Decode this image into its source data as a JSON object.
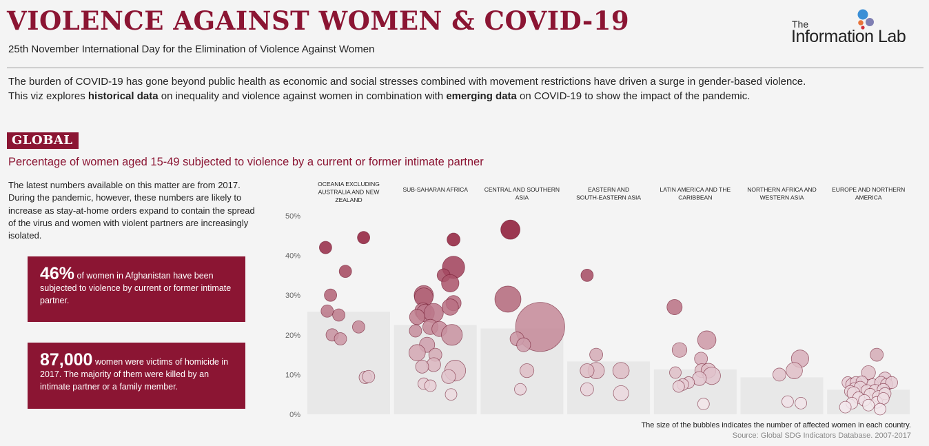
{
  "header": {
    "title": "VIOLENCE AGAINST WOMEN & COVID-19",
    "subtitle": "25th November International Day for the Elimination of Violence Against Women",
    "logo_the": "The",
    "logo_name": "Information Lab"
  },
  "intro": {
    "line1": "The burden of COVID-19 has gone beyond public health as economic and social stresses combined with movement restrictions have driven a surge in gender-based violence.",
    "line2_a": "This viz explores ",
    "line2_b": "historical data",
    "line2_c": " on inequality and violence against women in combination with ",
    "line2_d": "emerging data",
    "line2_e": " on COVID-19 to show the impact of the pandemic."
  },
  "section": {
    "badge": "GLOBAL",
    "title": "Percentage of women aged 15-49 subjected to violence by a current or former intimate partner",
    "description": "The latest numbers available on this matter are from 2017. During the pandemic, however, these numbers are likely to increase as stay-at-home orders expand to contain the spread of the virus and women with violent partners are increasingly isolated."
  },
  "cards": [
    {
      "big": "46%",
      "text": " of women in Afghanistan have been subjected to violence by current or former intimate partner."
    },
    {
      "big": "87,000",
      "text": "  women  were victims of homicide in 2017. The majority of them were killed by an intimate partner or a family member."
    }
  ],
  "footer": {
    "note": "The size of the bubbles indicates the number of affected women in each country.",
    "source": "Source: Global SDG Indicators Database. 2007-2017"
  },
  "colors": {
    "accent": "#8b1533",
    "bar": "#e8e8e8"
  },
  "chart_data": {
    "type": "bar",
    "ylim": [
      0,
      50
    ],
    "yticks": [
      "0%",
      "10%",
      "20%",
      "30%",
      "40%",
      "50%"
    ],
    "regions": [
      {
        "name": [
          "OCEANIA EXCLUDING",
          "AUSTRALIA AND NEW",
          "ZEALAND"
        ],
        "bar": 25.8,
        "bubbles": [
          [
            0.22,
            42,
            1
          ],
          [
            0.68,
            44.5,
            1
          ],
          [
            0.46,
            36,
            1
          ],
          [
            0.28,
            30,
            1
          ],
          [
            0.24,
            26,
            1
          ],
          [
            0.38,
            25,
            1
          ],
          [
            0.62,
            22,
            1
          ],
          [
            0.3,
            20,
            1
          ],
          [
            0.4,
            19,
            1
          ],
          [
            0.7,
            9.3,
            1
          ],
          [
            0.74,
            9.5,
            1
          ]
        ]
      },
      {
        "name": [
          "SUB-SAHARAN AFRICA"
        ],
        "bar": 22.5,
        "bubbles": [
          [
            0.72,
            44,
            1.2
          ],
          [
            0.72,
            37,
            6
          ],
          [
            0.6,
            35,
            1.2
          ],
          [
            0.68,
            33,
            3
          ],
          [
            0.36,
            30,
            4
          ],
          [
            0.36,
            29.5,
            3.6
          ],
          [
            0.35,
            26,
            2.5
          ],
          [
            0.38,
            25.5,
            3.2
          ],
          [
            0.48,
            25.5,
            4
          ],
          [
            0.28,
            24.5,
            2
          ],
          [
            0.72,
            28,
            2
          ],
          [
            0.68,
            27,
            2.5
          ],
          [
            0.44,
            22,
            2
          ],
          [
            0.55,
            21.5,
            2
          ],
          [
            0.26,
            21,
            1
          ],
          [
            0.7,
            20,
            5
          ],
          [
            0.4,
            17.5,
            2
          ],
          [
            0.28,
            15.5,
            2.5
          ],
          [
            0.5,
            15,
            1.2
          ],
          [
            0.48,
            12.5,
            1.5
          ],
          [
            0.34,
            12,
            1.2
          ],
          [
            0.74,
            11,
            5
          ],
          [
            0.66,
            9.5,
            1.5
          ],
          [
            0.36,
            7.7,
            0.8
          ],
          [
            0.44,
            7.2,
            0.8
          ],
          [
            0.69,
            5,
            0.8
          ]
        ]
      },
      {
        "name": [
          "CENTRAL AND SOUTHERN",
          "ASIA"
        ],
        "bar": 21.6,
        "bubbles": [
          [
            0.36,
            46.5,
            4
          ],
          [
            0.33,
            29,
            9
          ],
          [
            0.72,
            22,
            40
          ],
          [
            0.44,
            19,
            1.5
          ],
          [
            0.52,
            17.5,
            1.5
          ],
          [
            0.56,
            11,
            1.5
          ],
          [
            0.48,
            6.3,
            0.8
          ]
        ]
      },
      {
        "name": [
          "EASTERN AND",
          "SOUTH-EASTERN ASIA"
        ],
        "bar": 13.3,
        "bubbles": [
          [
            0.24,
            35,
            1
          ],
          [
            0.35,
            15,
            1.2
          ],
          [
            0.35,
            11,
            2.5
          ],
          [
            0.65,
            11,
            2.5
          ],
          [
            0.24,
            11,
            1.5
          ],
          [
            0.24,
            6.3,
            1.2
          ],
          [
            0.65,
            5.3,
            2
          ]
        ]
      },
      {
        "name": [
          "LATIN AMERICA AND THE",
          "CARIBBEAN"
        ],
        "bar": 11.3,
        "bubbles": [
          [
            0.25,
            27,
            2
          ],
          [
            0.31,
            16.2,
            1.8
          ],
          [
            0.64,
            18.7,
            3.5
          ],
          [
            0.57,
            14,
            1.2
          ],
          [
            0.26,
            10.5,
            0.8
          ],
          [
            0.58,
            11,
            1.5
          ],
          [
            0.66,
            11,
            1.8
          ],
          [
            0.7,
            9.7,
            3
          ],
          [
            0.55,
            9,
            1.5
          ],
          [
            0.42,
            8,
            0.8
          ],
          [
            0.35,
            7.5,
            0.8
          ],
          [
            0.3,
            7,
            0.8
          ],
          [
            0.6,
            2.6,
            0.8
          ]
        ]
      },
      {
        "name": [
          "NORTHERN AFRICA AND",
          "WESTERN ASIA"
        ],
        "bar": 9.3,
        "bubbles": [
          [
            0.72,
            14,
            3
          ],
          [
            0.65,
            11,
            2.5
          ],
          [
            0.47,
            10,
            1.2
          ],
          [
            0.57,
            3.2,
            0.8
          ],
          [
            0.73,
            2.8,
            0.8
          ]
        ]
      },
      {
        "name": [
          "EUROPE AND NORTHERN",
          "AMERICA"
        ],
        "bar": 6.2,
        "bubbles": [
          [
            0.6,
            15,
            1.2
          ],
          [
            0.5,
            10.5,
            1.5
          ],
          [
            0.7,
            9,
            1.2
          ],
          [
            0.25,
            8,
            0.8
          ],
          [
            0.3,
            7.5,
            1
          ],
          [
            0.35,
            8,
            0.9
          ],
          [
            0.42,
            8.2,
            0.8
          ],
          [
            0.55,
            7.5,
            0.8
          ],
          [
            0.65,
            8,
            1
          ],
          [
            0.72,
            7.5,
            1
          ],
          [
            0.78,
            8,
            0.9
          ],
          [
            0.33,
            6.5,
            0.8
          ],
          [
            0.4,
            6.8,
            0.9
          ],
          [
            0.48,
            6,
            0.8
          ],
          [
            0.58,
            6,
            0.9
          ],
          [
            0.68,
            6.2,
            1
          ],
          [
            0.28,
            5.8,
            0.8
          ],
          [
            0.32,
            5.3,
            1.2
          ],
          [
            0.52,
            5,
            0.9
          ],
          [
            0.62,
            4.5,
            0.8
          ],
          [
            0.7,
            5.2,
            0.9
          ],
          [
            0.38,
            4.2,
            0.8
          ],
          [
            0.45,
            3.5,
            0.8
          ],
          [
            0.6,
            3,
            0.8
          ],
          [
            0.68,
            4,
            0.8
          ],
          [
            0.3,
            2.8,
            0.8
          ],
          [
            0.5,
            2.3,
            0.8
          ],
          [
            0.22,
            1.8,
            0.8
          ],
          [
            0.64,
            1.3,
            0.8
          ]
        ]
      }
    ]
  }
}
